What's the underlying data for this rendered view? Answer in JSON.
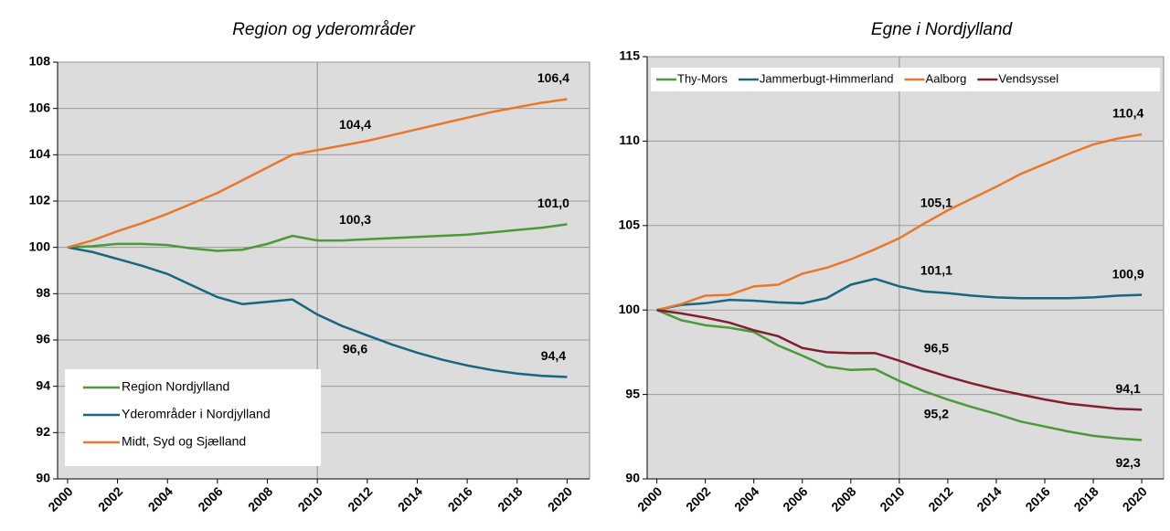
{
  "chart_data": [
    {
      "type": "line",
      "title": "Region og yderområder",
      "x": [
        2000,
        2001,
        2002,
        2003,
        2004,
        2005,
        2006,
        2007,
        2008,
        2009,
        2010,
        2011,
        2012,
        2013,
        2014,
        2015,
        2016,
        2017,
        2018,
        2019,
        2020
      ],
      "xlim": [
        1999.6,
        2020.9
      ],
      "xticks": [
        2000,
        2002,
        2004,
        2006,
        2008,
        2010,
        2012,
        2014,
        2016,
        2018,
        2020
      ],
      "ylim": [
        90,
        108
      ],
      "yticks": [
        90,
        92,
        94,
        96,
        98,
        100,
        102,
        104,
        106,
        108
      ],
      "grid": true,
      "reference_line_x": 2010,
      "legend": "lower left",
      "series": [
        {
          "name": "Region Nordjylland",
          "color": "#4a9a38",
          "values": [
            100,
            100.05,
            100.15,
            100.15,
            100.1,
            99.95,
            99.85,
            99.9,
            100.15,
            100.5,
            100.3,
            100.3,
            100.35,
            100.4,
            100.45,
            100.5,
            100.55,
            100.65,
            100.75,
            100.85,
            101.0
          ],
          "value_labels": [
            null,
            null,
            null,
            null,
            null,
            null,
            null,
            null,
            null,
            null,
            null,
            "100,3",
            null,
            null,
            null,
            null,
            null,
            null,
            null,
            null,
            "101,0"
          ]
        },
        {
          "name": "Yderområder i Nordjylland",
          "color": "#17677f",
          "values": [
            100,
            99.8,
            99.5,
            99.2,
            98.85,
            98.35,
            97.85,
            97.55,
            97.65,
            97.75,
            97.1,
            96.6,
            96.2,
            95.8,
            95.45,
            95.15,
            94.9,
            94.7,
            94.55,
            94.45,
            94.4
          ],
          "value_labels": [
            null,
            null,
            null,
            null,
            null,
            null,
            null,
            null,
            null,
            null,
            null,
            "96,6",
            null,
            null,
            null,
            null,
            null,
            null,
            null,
            null,
            "94,4"
          ]
        },
        {
          "name": "Midt, Syd og Sjælland",
          "color": "#e8782a",
          "values": [
            100,
            100.3,
            100.7,
            101.05,
            101.45,
            101.9,
            102.35,
            102.9,
            103.45,
            104.0,
            104.2,
            104.4,
            104.6,
            104.85,
            105.1,
            105.35,
            105.6,
            105.85,
            106.05,
            106.25,
            106.4
          ],
          "value_labels": [
            null,
            null,
            null,
            null,
            null,
            null,
            null,
            null,
            null,
            null,
            null,
            "104,4",
            null,
            null,
            null,
            null,
            null,
            null,
            null,
            null,
            "106,4"
          ]
        }
      ]
    },
    {
      "type": "line",
      "title": "Egne i Nordjylland",
      "x": [
        2000,
        2001,
        2002,
        2003,
        2004,
        2005,
        2006,
        2007,
        2008,
        2009,
        2010,
        2011,
        2012,
        2013,
        2014,
        2015,
        2016,
        2017,
        2018,
        2019,
        2020
      ],
      "xlim": [
        1999.6,
        2020.9
      ],
      "xticks": [
        2000,
        2002,
        2004,
        2006,
        2008,
        2010,
        2012,
        2014,
        2016,
        2018,
        2020
      ],
      "ylim": [
        90,
        115
      ],
      "yticks": [
        90,
        95,
        100,
        105,
        110,
        115
      ],
      "grid": true,
      "reference_line_x": 2010,
      "legend": "top",
      "series": [
        {
          "name": "Thy-Mors",
          "color": "#4a9a38",
          "values": [
            100,
            99.4,
            99.1,
            98.95,
            98.7,
            97.9,
            97.3,
            96.65,
            96.45,
            96.5,
            95.8,
            95.2,
            94.7,
            94.25,
            93.85,
            93.4,
            93.1,
            92.8,
            92.55,
            92.4,
            92.3
          ],
          "value_labels": [
            null,
            null,
            null,
            null,
            null,
            null,
            null,
            null,
            null,
            null,
            null,
            "95,2",
            null,
            null,
            null,
            null,
            null,
            null,
            null,
            null,
            "92,3"
          ]
        },
        {
          "name": "Jammerbugt-Himmerland",
          "color": "#17677f",
          "values": [
            100,
            100.3,
            100.4,
            100.6,
            100.55,
            100.45,
            100.4,
            100.7,
            101.5,
            101.85,
            101.4,
            101.1,
            101.0,
            100.85,
            100.75,
            100.7,
            100.7,
            100.7,
            100.75,
            100.85,
            100.9
          ],
          "value_labels": [
            null,
            null,
            null,
            null,
            null,
            null,
            null,
            null,
            null,
            null,
            null,
            "101,1",
            null,
            null,
            null,
            null,
            null,
            null,
            null,
            null,
            "100,9"
          ]
        },
        {
          "name": "Aalborg",
          "color": "#e8782a",
          "values": [
            100,
            100.35,
            100.85,
            100.9,
            101.4,
            101.5,
            102.15,
            102.5,
            103.0,
            103.6,
            104.25,
            105.1,
            105.9,
            106.6,
            107.3,
            108.05,
            108.65,
            109.25,
            109.8,
            110.15,
            110.4
          ],
          "value_labels": [
            null,
            null,
            null,
            null,
            null,
            null,
            null,
            null,
            null,
            null,
            null,
            "105,1",
            null,
            null,
            null,
            null,
            null,
            null,
            null,
            null,
            "110,4"
          ]
        },
        {
          "name": "Vendsyssel",
          "color": "#7f1f2f",
          "values": [
            100,
            99.8,
            99.55,
            99.25,
            98.8,
            98.45,
            97.75,
            97.5,
            97.45,
            97.45,
            97.0,
            96.5,
            96.05,
            95.65,
            95.3,
            95.0,
            94.7,
            94.45,
            94.3,
            94.15,
            94.1
          ],
          "value_labels": [
            null,
            null,
            null,
            null,
            null,
            null,
            null,
            null,
            null,
            null,
            null,
            "96,5",
            null,
            null,
            null,
            null,
            null,
            null,
            null,
            null,
            "94,1"
          ]
        }
      ]
    }
  ]
}
